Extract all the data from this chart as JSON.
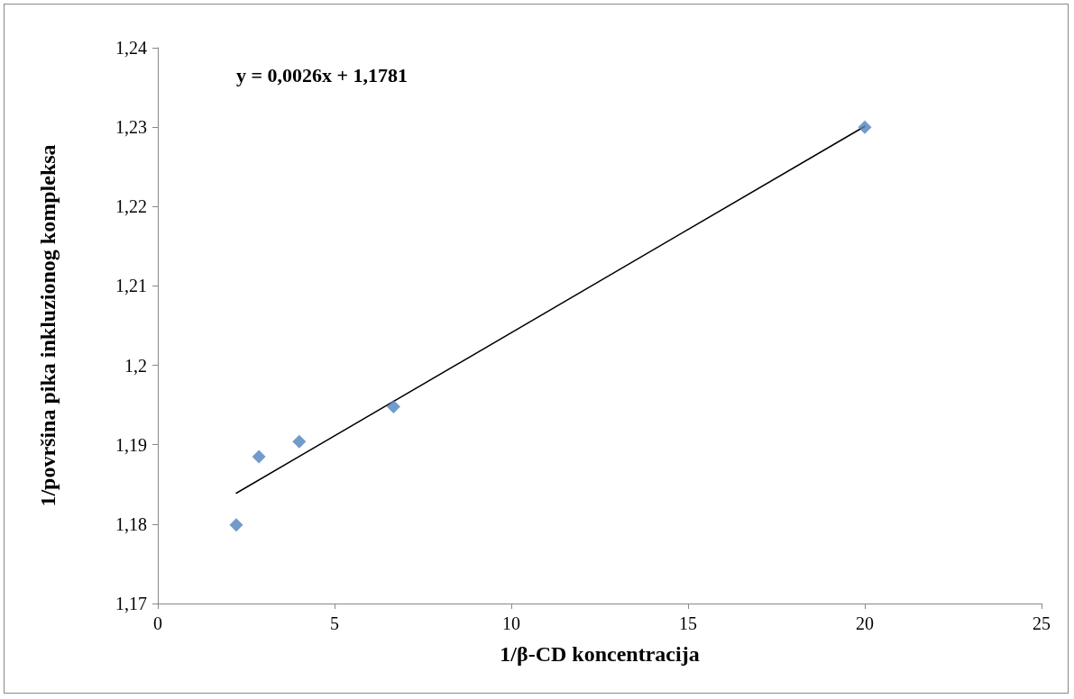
{
  "chart_data": {
    "type": "scatter",
    "xlabel": "1/β-CD koncentracija",
    "ylabel": "1/površina pika inkluzionog kompleksa",
    "annotations": [
      "y = 0,0026x + 1,1781"
    ],
    "series": [
      {
        "type": "scatter",
        "color": "#4f81bd",
        "marker": "diamond",
        "x": [
          2.22,
          2.86,
          4,
          6.67,
          20
        ],
        "values": [
          1.1799,
          1.1885,
          1.1904,
          1.1948,
          1.23
        ]
      },
      {
        "type": "line",
        "color": "#000000",
        "marker": "none",
        "line_style": "solid",
        "x": [
          2.22,
          20
        ],
        "values": [
          1.1839,
          1.2301
        ]
      }
    ],
    "xlim": [
      0,
      25
    ],
    "xticks": [
      0,
      5,
      10,
      15,
      20,
      25
    ],
    "ylim": [
      1.17,
      1.24
    ],
    "yticks": [
      {
        "value": 1.17,
        "label": "1,17"
      },
      {
        "value": 1.18,
        "label": "1,18"
      },
      {
        "value": 1.19,
        "label": "1,19"
      },
      {
        "value": 1.2,
        "label": "1,2"
      },
      {
        "value": 1.21,
        "label": "1,21"
      },
      {
        "value": 1.22,
        "label": "1,22"
      },
      {
        "value": 1.23,
        "label": "1,23"
      },
      {
        "value": 1.24,
        "label": "1,24"
      }
    ],
    "grid": false
  }
}
